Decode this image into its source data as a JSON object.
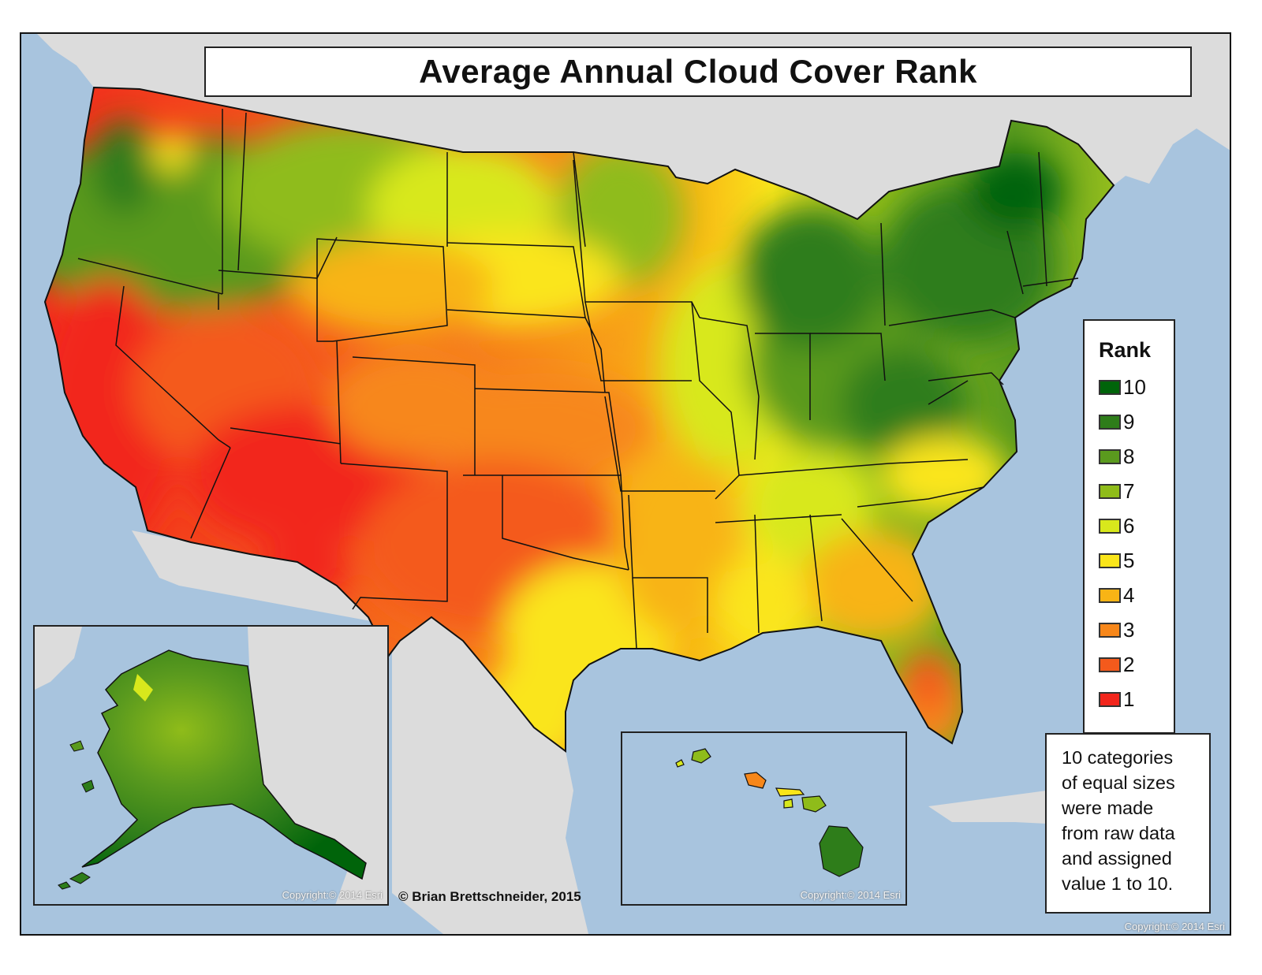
{
  "map": {
    "title": "Average Annual Cloud Cover Rank",
    "legend": {
      "title": "Rank",
      "items": [
        {
          "label": "10",
          "color": "#00640a"
        },
        {
          "label": "9",
          "color": "#2e7d1a"
        },
        {
          "label": "8",
          "color": "#5a9a1e"
        },
        {
          "label": "7",
          "color": "#8fbc1a"
        },
        {
          "label": "6",
          "color": "#d8e81c"
        },
        {
          "label": "5",
          "color": "#fae51a"
        },
        {
          "label": "4",
          "color": "#f8b415"
        },
        {
          "label": "3",
          "color": "#f7871a"
        },
        {
          "label": "2",
          "color": "#f45a1c"
        },
        {
          "label": "1",
          "color": "#f2261c"
        }
      ]
    },
    "note": {
      "lines": [
        "10 categories",
        "of equal sizes",
        "were made",
        "from raw data",
        "and assigned",
        "value 1 to 10."
      ]
    },
    "credit": "© Brian Brettschneider, 2015",
    "copyright_alaska": "Copyright:© 2014 Esri",
    "copyright_hawaii": "Copyright:© 2014 Esri",
    "copyright_main": "Copyright:© 2014 Esri",
    "colors": {
      "water": "#a8c4de",
      "land_outside": "#dcdcdc"
    }
  }
}
